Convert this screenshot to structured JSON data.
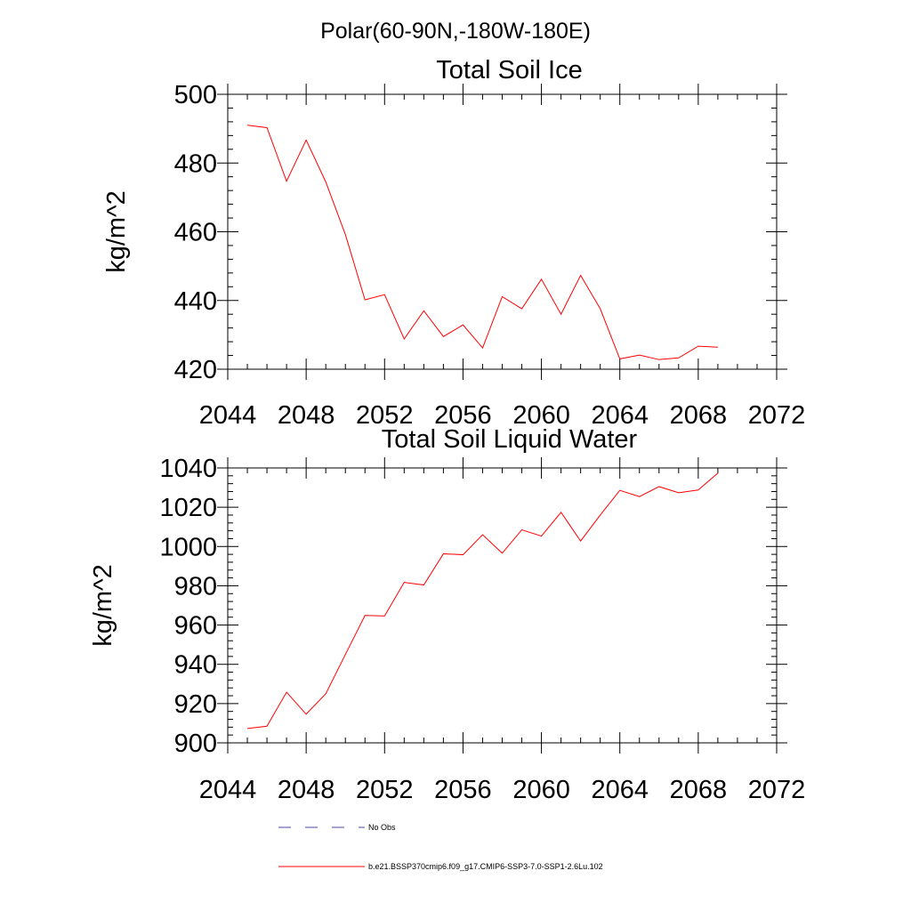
{
  "figure_title": "Polar(60-90N,-180W-180E)",
  "chart_data": [
    {
      "type": "line",
      "title": "Total Soil Ice",
      "xlabel": "",
      "ylabel": "kg/m^2",
      "xlim": [
        2044,
        2072
      ],
      "ylim": [
        420,
        500
      ],
      "xticks": [
        2044,
        2048,
        2052,
        2056,
        2060,
        2064,
        2068,
        2072
      ],
      "yticks": [
        420,
        440,
        460,
        480,
        500
      ],
      "grid": false,
      "series": [
        {
          "color": "#ff0000",
          "x": [
            2045,
            2046,
            2047,
            2048,
            2049,
            2050,
            2051,
            2052,
            2053,
            2054,
            2055,
            2056,
            2057,
            2058,
            2059,
            2060,
            2061,
            2062,
            2063,
            2064,
            2065,
            2066,
            2067,
            2068,
            2069
          ],
          "values": [
            491.0,
            490.3,
            474.7,
            486.7,
            474.5,
            459.2,
            440.2,
            441.7,
            428.8,
            437.0,
            429.5,
            432.9,
            426.2,
            441.1,
            437.6,
            446.2,
            436.0,
            447.3,
            437.6,
            423.0,
            424.1,
            422.8,
            423.3,
            426.7,
            426.4
          ]
        }
      ]
    },
    {
      "type": "line",
      "title": "Total Soil Liquid Water",
      "xlabel": "",
      "ylabel": "kg/m^2",
      "xlim": [
        2044,
        2072
      ],
      "ylim": [
        900,
        1040
      ],
      "xticks": [
        2044,
        2048,
        2052,
        2056,
        2060,
        2064,
        2068,
        2072
      ],
      "yticks": [
        900,
        920,
        940,
        960,
        980,
        1000,
        1020,
        1040
      ],
      "grid": false,
      "series": [
        {
          "color": "#ff0000",
          "x": [
            2045,
            2046,
            2047,
            2048,
            2049,
            2050,
            2051,
            2052,
            2053,
            2054,
            2055,
            2056,
            2057,
            2058,
            2059,
            2060,
            2061,
            2062,
            2063,
            2064,
            2065,
            2066,
            2067,
            2068,
            2069
          ],
          "values": [
            907.3,
            908.5,
            925.8,
            914.6,
            925.0,
            945.0,
            964.9,
            964.6,
            981.7,
            980.4,
            996.3,
            995.8,
            1006.0,
            996.6,
            1008.5,
            1005.3,
            1017.4,
            1002.8,
            1016.0,
            1028.6,
            1025.4,
            1030.5,
            1027.4,
            1028.8,
            1037.4
          ]
        }
      ]
    }
  ],
  "legend": {
    "placement": "bottom-center",
    "items": [
      {
        "label": "No Obs",
        "color": "#4a4aa8",
        "dash": true
      },
      {
        "label": "b.e21.BSSP370cmip6.f09_g17.CMIP6-SSP3-7.0-SSP1-2.6Lu.102",
        "color": "#ff0000",
        "dash": false
      }
    ]
  }
}
